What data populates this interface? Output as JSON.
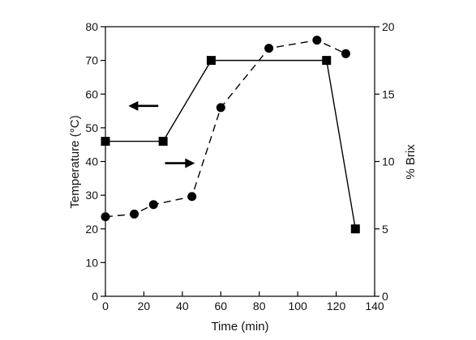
{
  "chart_data": {
    "type": "line",
    "xlabel": "Time (min)",
    "ylabel_left": "Temperature (°C)",
    "ylabel_right": "% Brix",
    "xlim": [
      0,
      140
    ],
    "ylim_left": [
      0,
      80
    ],
    "ylim_right": [
      0,
      20
    ],
    "x_ticks": [
      0,
      20,
      40,
      60,
      80,
      100,
      120,
      140
    ],
    "y_left_ticks": [
      0,
      10,
      20,
      30,
      40,
      50,
      60,
      70,
      80
    ],
    "y_right_ticks": [
      0,
      5,
      10,
      15,
      20
    ],
    "grid": false,
    "legend": "none; arrows indicate axis for each series",
    "series": [
      {
        "axis": "left",
        "marker": "square",
        "line_style": "solid",
        "color": "#000000",
        "x": [
          0,
          30,
          55,
          115,
          130
        ],
        "y": [
          46,
          46,
          70,
          70,
          20
        ]
      },
      {
        "axis": "right",
        "marker": "circle",
        "line_style": "dashed",
        "color": "#000000",
        "x": [
          0,
          15,
          25,
          45,
          60,
          85,
          110,
          125
        ],
        "y": [
          5.9,
          6.1,
          6.8,
          7.4,
          14.0,
          18.4,
          19.0,
          18.0
        ]
      }
    ],
    "annotations": [
      {
        "type": "arrow",
        "direction": "left",
        "refers_to": "left axis (Temperature)"
      },
      {
        "type": "arrow",
        "direction": "right",
        "refers_to": "right axis (% Brix)"
      }
    ]
  }
}
